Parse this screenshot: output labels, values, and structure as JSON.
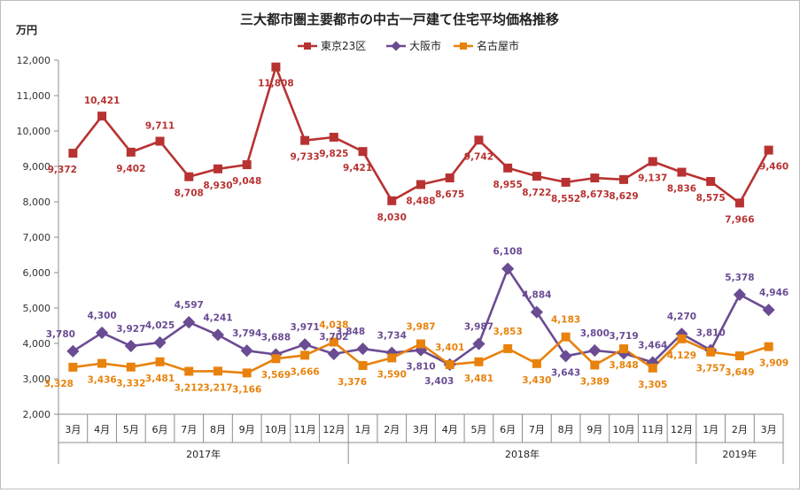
{
  "chart_data": {
    "type": "line",
    "title": "三大都市圏主要都市の中古一戸建て住宅平均価格推移",
    "ylabel": "万円",
    "ylim": [
      2000,
      12000
    ],
    "yticks": [
      "2,000",
      "3,000",
      "4,000",
      "5,000",
      "6,000",
      "7,000",
      "8,000",
      "9,000",
      "10,000",
      "11,000",
      "12,000"
    ],
    "grid": false,
    "legend_position": "top-center",
    "categories": [
      "3月",
      "4月",
      "5月",
      "6月",
      "7月",
      "8月",
      "9月",
      "10月",
      "11月",
      "12月",
      "1月",
      "2月",
      "3月",
      "4月",
      "5月",
      "6月",
      "7月",
      "8月",
      "9月",
      "10月",
      "11月",
      "12月",
      "1月",
      "2月",
      "3月"
    ],
    "year_groups": [
      {
        "label": "2017年",
        "count": 10
      },
      {
        "label": "2018年",
        "count": 12
      },
      {
        "label": "2019年",
        "count": 3
      }
    ],
    "series": [
      {
        "name": "東京23区",
        "color": "#b83232",
        "marker": "square",
        "values": [
          9372,
          10421,
          9402,
          9711,
          8708,
          8930,
          9048,
          11808,
          9733,
          9825,
          9421,
          8030,
          8488,
          8675,
          9742,
          8955,
          8722,
          8552,
          8673,
          8629,
          9137,
          8836,
          8575,
          7966,
          9460
        ],
        "labels": [
          "9,372",
          "10,421",
          "9,402",
          "9,711",
          "8,708",
          "8,930",
          "9,048",
          "11,808",
          "9,733",
          "9,825",
          "9,421",
          "8,030",
          "8,488",
          "8,675",
          "9,742",
          "8,955",
          "8,722",
          "8,552",
          "8,673",
          "8,629",
          "9,137",
          "8,836",
          "8,575",
          "7,966",
          "9,460"
        ]
      },
      {
        "name": "大阪市",
        "color": "#6a4c93",
        "marker": "diamond",
        "values": [
          3780,
          4300,
          3927,
          4025,
          4597,
          4241,
          3794,
          3688,
          3971,
          3702,
          3848,
          3734,
          3810,
          3403,
          3987,
          6108,
          4884,
          3643,
          3800,
          3719,
          3464,
          4270,
          3810,
          5378,
          4946
        ],
        "labels": [
          "3,780",
          "4,300",
          "3,927",
          "4,025",
          "4,597",
          "4,241",
          "3,794",
          "3,688",
          "3,971",
          "3,702",
          "3,848",
          "3,734",
          "3,810",
          "3,403",
          "3,987",
          "6,108",
          "4,884",
          "3,643",
          "3,800",
          "3,719",
          "3,464",
          "4,270",
          "3,810",
          "5,378",
          "4,946"
        ]
      },
      {
        "name": "名古屋市",
        "color": "#e8820c",
        "marker": "square",
        "values": [
          3328,
          3436,
          3332,
          3481,
          3212,
          3217,
          3166,
          3569,
          3666,
          4038,
          3376,
          3590,
          3987,
          3401,
          3481,
          3853,
          3430,
          4183,
          3389,
          3848,
          3305,
          4129,
          3757,
          3649,
          3909
        ],
        "labels": [
          "3,328",
          "3,436",
          "3,332",
          "3,481",
          "3,212",
          "3,217",
          "3,166",
          "3,569",
          "3,666",
          "4,038",
          "3,376",
          "3,590",
          "3,987",
          "3,401",
          "3,481",
          "3,853",
          "3,430",
          "4,183",
          "3,389",
          "3,848",
          "3,305",
          "4,129",
          "3,757",
          "3,649",
          "3,909"
        ]
      }
    ]
  }
}
